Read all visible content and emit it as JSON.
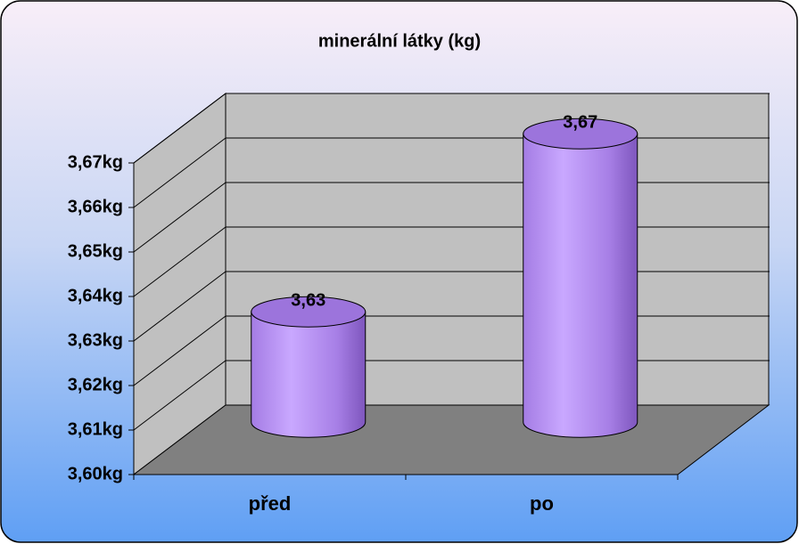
{
  "chart_data": {
    "type": "bar3d",
    "title": "minerální látky (kg)",
    "categories": [
      "před",
      "po"
    ],
    "values": [
      3.63,
      3.67
    ],
    "value_labels": [
      "3,63",
      "3,67"
    ],
    "color": "#b48cf0",
    "ylim": [
      3.6,
      3.67
    ],
    "yticks": [
      {
        "value": 3.6,
        "label": "3,60kg"
      },
      {
        "value": 3.61,
        "label": "3,61kg"
      },
      {
        "value": 3.62,
        "label": "3,62kg"
      },
      {
        "value": 3.63,
        "label": "3,63kg"
      },
      {
        "value": 3.64,
        "label": "3,64kg"
      },
      {
        "value": 3.65,
        "label": "3,65kg"
      },
      {
        "value": 3.66,
        "label": "3,66kg"
      },
      {
        "value": 3.67,
        "label": "3,67kg"
      }
    ],
    "grid": true
  }
}
